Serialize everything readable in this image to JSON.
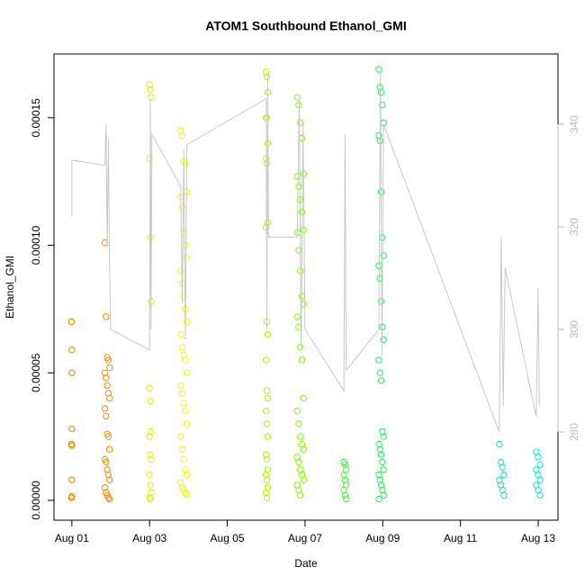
{
  "chart_data": {
    "type": "scatter",
    "title": "ATOM1 Southbound Ethanol_GMI",
    "x_label": "Date",
    "y_label": "Ethanol_GMI",
    "xlim": [
      0.54,
      13.51
    ],
    "xticks": [
      {
        "value": 1,
        "label": "Aug 01"
      },
      {
        "value": 3,
        "label": "Aug 03"
      },
      {
        "value": 5,
        "label": "Aug 05"
      },
      {
        "value": 7,
        "label": "Aug 07"
      },
      {
        "value": 9,
        "label": "Aug 09"
      },
      {
        "value": 11,
        "label": "Aug 11"
      },
      {
        "value": 13,
        "label": "Aug 13"
      }
    ],
    "ylim": [
      -7.8e-06,
      0.000175
    ],
    "yticks": [
      {
        "value": 0,
        "label": "0.00000"
      },
      {
        "value": 5e-05,
        "label": "0.00005"
      },
      {
        "value": 0.0001,
        "label": "0.00010"
      },
      {
        "value": 0.00015,
        "label": "0.00015"
      }
    ],
    "y2lim": [
      262.8,
      353.7
    ],
    "y2ticks": [
      280,
      300,
      320,
      340
    ],
    "series": [
      {
        "color": "#f08000",
        "x": [
          0.99,
          1.0,
          1.0,
          1.0,
          0.99,
          1.0,
          1.0,
          1.0,
          0.99
        ],
        "values": [
          7e-05,
          5.9e-05,
          5e-05,
          2.8e-05,
          2.2e-05,
          2.15e-05,
          8e-06,
          1.5e-06,
          1e-06
        ]
      },
      {
        "color": "#ff8c00",
        "x": [
          1.85,
          1.88,
          1.91,
          1.94,
          1.97,
          1.85,
          1.88,
          1.91,
          1.94,
          1.97,
          1.85,
          1.88,
          1.91,
          1.94,
          1.97,
          1.85,
          1.88,
          1.91,
          1.94,
          1.97,
          1.85,
          1.88,
          1.91,
          1.94,
          1.97
        ],
        "values": [
          0.000101,
          7.2e-05,
          5.6e-05,
          5.5e-05,
          5.2e-05,
          5e-05,
          4.8e-05,
          4.5e-05,
          4.2e-05,
          4e-05,
          3.6e-05,
          3.3e-05,
          2.6e-05,
          2.5e-05,
          2e-05,
          1.6e-05,
          1.5e-05,
          1.2e-05,
          1e-05,
          8e-06,
          5e-06,
          3e-06,
          2e-06,
          1e-06,
          5e-07
        ]
      },
      {
        "color": "#e8f000",
        "x": [
          3.0,
          3.02,
          3.04,
          3.0,
          3.02,
          3.04,
          3.0,
          3.02,
          3.04,
          3.0,
          3.02,
          3.04,
          3.0,
          3.02,
          3.04,
          3.0,
          3.02
        ],
        "values": [
          0.000163,
          0.000161,
          0.000158,
          0.000134,
          0.000103,
          7.8e-05,
          4.4e-05,
          3.9e-05,
          2.7e-05,
          2.5e-05,
          1.8e-05,
          1.6e-05,
          1e-05,
          6e-06,
          3e-06,
          1e-06,
          5e-07
        ]
      },
      {
        "color": "#f0ff00",
        "x": [
          3.8,
          3.84,
          3.88,
          3.92,
          3.96,
          3.8,
          3.84,
          3.88,
          3.92,
          3.96,
          3.8,
          3.84,
          3.88,
          3.92,
          3.96,
          3.8,
          3.84,
          3.88,
          3.92,
          3.96,
          3.8,
          3.84,
          3.88,
          3.92,
          3.96,
          3.8,
          3.84,
          3.88,
          3.92,
          3.96,
          3.8,
          3.84,
          3.88,
          3.92,
          3.96
        ],
        "values": [
          0.000145,
          0.000143,
          0.000133,
          0.000132,
          0.000121,
          0.000119,
          0.000115,
          0.000105,
          0.0001,
          9.5e-05,
          9e-05,
          8.5e-05,
          8e-05,
          7.5e-05,
          7e-05,
          6.5e-05,
          6e-05,
          5.7e-05,
          5.5e-05,
          5e-05,
          4.5e-05,
          4.2e-05,
          3.8e-05,
          3.5e-05,
          3e-05,
          2.5e-05,
          2e-05,
          1.6e-05,
          1.2e-05,
          1e-05,
          7e-06,
          5e-06,
          4e-06,
          3e-06,
          2e-06
        ]
      },
      {
        "color": "#a8ff00",
        "x": [
          6.0,
          6.02,
          6.04,
          6.0,
          6.02,
          6.04,
          6.0,
          6.02,
          6.04,
          6.0,
          6.02,
          6.04,
          6.0,
          6.02,
          6.04,
          6.0,
          6.02,
          6.04,
          6.0,
          6.02,
          6.04,
          6.0,
          6.02,
          6.04,
          6.0,
          6.02
        ],
        "values": [
          0.000168,
          0.000166,
          0.00016,
          0.00015,
          0.00015,
          0.00014,
          0.000134,
          0.000132,
          0.000109,
          0.000107,
          7e-05,
          6.5e-05,
          5.5e-05,
          4.3e-05,
          4e-05,
          3.5e-05,
          3e-05,
          2.5e-05,
          1.8e-05,
          1.6e-05,
          1.2e-05,
          1e-05,
          8e-06,
          5e-06,
          3e-06,
          1e-06
        ]
      },
      {
        "color": "#7cff00",
        "x": [
          6.8,
          6.84,
          6.88,
          6.92,
          6.96,
          6.8,
          6.84,
          6.88,
          6.92,
          6.96,
          6.8,
          6.84,
          6.88,
          6.92,
          6.96,
          6.8,
          6.84,
          6.88,
          6.92,
          6.96,
          6.8,
          6.84,
          6.88,
          6.92,
          6.96,
          6.8,
          6.84,
          6.88,
          6.92,
          6.96,
          6.8,
          6.84,
          6.88
        ],
        "values": [
          0.000158,
          0.000155,
          0.000148,
          0.000142,
          0.000128,
          0.000127,
          0.000123,
          0.000118,
          0.000113,
          0.000106,
          0.000105,
          9.8e-05,
          9e-05,
          8e-05,
          7.7e-05,
          7.2e-05,
          6.8e-05,
          6e-05,
          5.5e-05,
          4e-05,
          3.5e-05,
          3e-05,
          2.5e-05,
          2.2e-05,
          2e-05,
          1.7e-05,
          1.5e-05,
          1.2e-05,
          1e-05,
          8e-06,
          6e-06,
          4e-06,
          2e-06
        ]
      },
      {
        "color": "#3cff30",
        "x": [
          8.0,
          8.03,
          8.06,
          8.0,
          8.03,
          8.06,
          8.0,
          8.03,
          8.06
        ],
        "values": [
          1.5e-05,
          1.4e-05,
          1.2e-05,
          1e-05,
          8e-06,
          6e-06,
          4e-06,
          2e-06,
          5e-07
        ]
      },
      {
        "color": "#10ff50",
        "x": [
          8.9,
          8.93,
          8.96,
          8.99,
          9.02,
          8.9,
          8.93,
          8.96,
          8.99,
          9.02,
          8.9,
          8.93,
          8.96,
          8.99,
          9.02,
          8.9,
          8.93,
          8.96,
          8.99,
          9.02,
          8.9,
          8.93,
          8.96,
          8.99,
          9.02,
          8.9,
          8.93,
          8.96,
          8.99,
          9.02,
          8.9
        ],
        "values": [
          0.000169,
          0.000162,
          0.00016,
          0.000155,
          0.000148,
          0.000143,
          0.000141,
          0.000121,
          0.000103,
          9.6e-05,
          9.2e-05,
          8.7e-05,
          7.8e-05,
          6.8e-05,
          6.3e-05,
          5.5e-05,
          5e-05,
          4.7e-05,
          2.7e-05,
          2.5e-05,
          2.2e-05,
          2e-05,
          1.8e-05,
          1.5e-05,
          1.2e-05,
          1e-05,
          8e-06,
          6e-06,
          4e-06,
          2e-06,
          5e-07
        ]
      },
      {
        "color": "#00f0b8",
        "x": [
          12.0,
          12.04,
          12.08,
          12.12,
          12.0,
          12.04,
          12.08,
          12.12
        ],
        "values": [
          2.2e-05,
          1.5e-05,
          1.3e-05,
          1e-05,
          8e-06,
          6e-06,
          4e-06,
          2e-06
        ]
      },
      {
        "color": "#00f0d0",
        "x": [
          12.95,
          13.0,
          13.05,
          12.95,
          13.0,
          13.05,
          12.95,
          13.0,
          13.05
        ],
        "values": [
          1.9e-05,
          1.7e-05,
          1.4e-05,
          1.2e-05,
          1e-05,
          8e-06,
          6e-06,
          4e-06,
          2e-06
        ]
      },
      {
        "type": "line",
        "axis": "y2",
        "color": "#c8c8c8",
        "x": [
          1.0,
          1.0,
          1.85,
          1.88,
          1.91,
          1.94,
          1.97,
          2.0,
          3.0,
          3.02,
          3.04,
          3.06,
          3.8,
          3.84,
          3.88,
          3.92,
          3.96,
          6.0,
          6.02,
          6.04,
          6.06,
          6.8,
          6.85,
          6.9,
          6.95,
          7.0,
          8.0,
          8.03,
          8.06,
          8.9,
          8.94,
          8.98,
          9.02,
          12.0,
          12.05,
          12.1,
          12.15,
          12.95,
          13.0,
          13.03
        ],
        "values": [
          322,
          333,
          332,
          340,
          316,
          337,
          312,
          300,
          296,
          345,
          300,
          338,
          328,
          305,
          335,
          298,
          336,
          345,
          300,
          350,
          318,
          318,
          345,
          296,
          340,
          300,
          288,
          338,
          292,
          300,
          350,
          295,
          340,
          280,
          318,
          285,
          312,
          283,
          308,
          285
        ]
      }
    ]
  }
}
